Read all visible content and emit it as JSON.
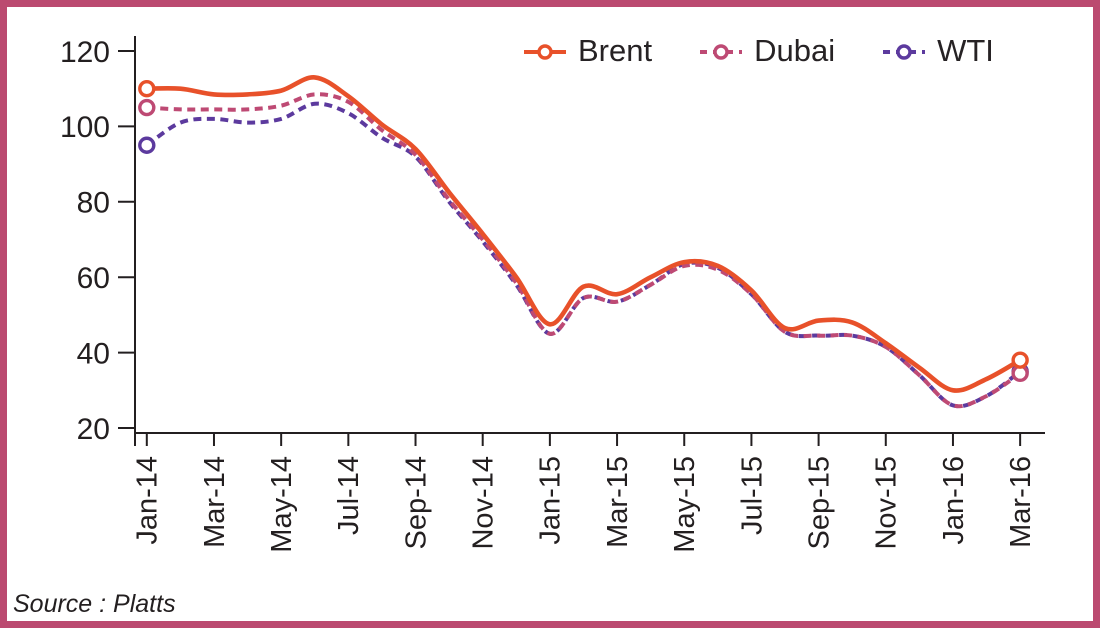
{
  "frame": {
    "border_color": "#bb4a70",
    "top_accent_color": "#a05570"
  },
  "source_note": "Source : Platts",
  "chart_data": {
    "type": "line",
    "title": "",
    "xlabel": "",
    "ylabel": "",
    "x": [
      "Jan-14",
      "Feb-14",
      "Mar-14",
      "Apr-14",
      "May-14",
      "Jun-14",
      "Jul-14",
      "Aug-14",
      "Sep-14",
      "Oct-14",
      "Nov-14",
      "Dec-14",
      "Jan-15",
      "Feb-15",
      "Mar-15",
      "Apr-15",
      "May-15",
      "Jun-15",
      "Jul-15",
      "Aug-15",
      "Sep-15",
      "Oct-15",
      "Nov-15",
      "Dec-15",
      "Jan-16",
      "Feb-16",
      "Mar-16"
    ],
    "x_tick_step": 2,
    "yticks": [
      20,
      40,
      60,
      80,
      100,
      120
    ],
    "ylim": [
      20,
      120
    ],
    "grid": false,
    "legend_position": "top",
    "axis_color": "#231f20",
    "series": [
      {
        "name": "WTI",
        "color": "#5c3a9e",
        "style": "dashed",
        "marker": "open-circle",
        "values": [
          95,
          101,
          102,
          101,
          102,
          106,
          103.5,
          97,
          92,
          80,
          69.5,
          58,
          45,
          54.5,
          53.5,
          58,
          63.5,
          62.5,
          55.5,
          45.5,
          44.5,
          44.5,
          41.5,
          34,
          26,
          28.5,
          35
        ]
      },
      {
        "name": "Dubai",
        "color": "#be4a74",
        "style": "dashed",
        "marker": "open-circle",
        "values": [
          105,
          104.5,
          104.5,
          104.5,
          105.5,
          108.5,
          106.5,
          99,
          92.5,
          80.5,
          70,
          58.5,
          45,
          54.5,
          53.5,
          58,
          63,
          62,
          55.5,
          45.5,
          44.5,
          44.5,
          41.5,
          34,
          26,
          28.5,
          34.5
        ]
      },
      {
        "name": "Brent",
        "color": "#e8512a",
        "style": "solid",
        "marker": "open-circle",
        "values": [
          110,
          110,
          108.5,
          108.5,
          109.5,
          113,
          108,
          100.5,
          94,
          82.5,
          71.5,
          60,
          47.5,
          57.5,
          55.5,
          60,
          64,
          63,
          56.5,
          46.5,
          48.5,
          48,
          42.5,
          36,
          30,
          33,
          38
        ]
      }
    ],
    "legend_order": [
      "Brent",
      "Dubai",
      "WTI"
    ]
  }
}
